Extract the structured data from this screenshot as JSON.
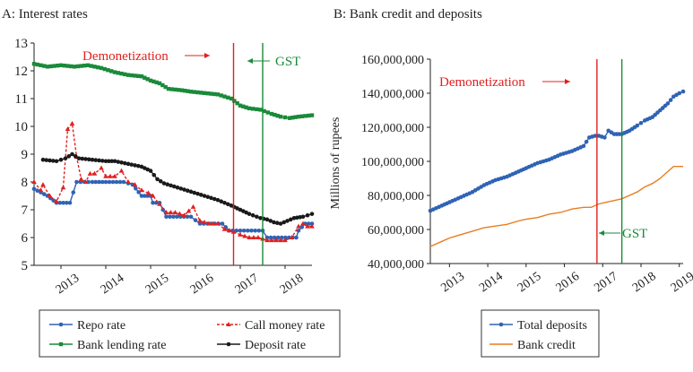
{
  "chart_data": [
    {
      "type": "line",
      "title": "A: Interest rates",
      "xlabel": "",
      "ylabel": "",
      "ylim": [
        5,
        13
      ],
      "yticks": [
        "5",
        "6",
        "7",
        "8",
        "9",
        "10",
        "11",
        "12",
        "13"
      ],
      "xlim": [
        2012.4,
        2018.6
      ],
      "xticks": [
        "2013",
        "2014",
        "2015",
        "2016",
        "2017",
        "2018"
      ],
      "grid": false,
      "legend_position": "bottom",
      "annotations": [
        {
          "text": "Demonetization",
          "x": 2016.85,
          "color": "#e02020",
          "line_color": "#e02020"
        },
        {
          "text": "GST",
          "x": 2017.5,
          "color": "#1a8a3a",
          "line_color": "#1a8a3a"
        }
      ],
      "series": [
        {
          "name": "Repo rate",
          "color": "#2f63b4",
          "marker": "circle",
          "points": [
            [
              2012.4,
              7.75
            ],
            [
              2012.7,
              7.5
            ],
            [
              2012.9,
              7.25
            ],
            [
              2013.2,
              7.25
            ],
            [
              2013.35,
              8.0
            ],
            [
              2013.7,
              8.0
            ],
            [
              2014.0,
              8.0
            ],
            [
              2014.4,
              8.0
            ],
            [
              2014.6,
              7.9
            ],
            [
              2014.8,
              7.5
            ],
            [
              2015.0,
              7.5
            ],
            [
              2015.05,
              7.25
            ],
            [
              2015.2,
              7.25
            ],
            [
              2015.35,
              6.75
            ],
            [
              2015.9,
              6.75
            ],
            [
              2016.1,
              6.5
            ],
            [
              2016.6,
              6.5
            ],
            [
              2016.75,
              6.25
            ],
            [
              2017.5,
              6.25
            ],
            [
              2017.6,
              6.0
            ],
            [
              2018.25,
              6.0
            ],
            [
              2018.3,
              6.25
            ],
            [
              2018.45,
              6.5
            ],
            [
              2018.6,
              6.5
            ]
          ]
        },
        {
          "name": "Call money rate",
          "color": "#e02020",
          "marker": "triangle",
          "points": [
            [
              2012.4,
              8.0
            ],
            [
              2012.55,
              7.7
            ],
            [
              2012.6,
              7.9
            ],
            [
              2012.75,
              7.5
            ],
            [
              2012.9,
              7.3
            ],
            [
              2013.05,
              7.8
            ],
            [
              2013.15,
              9.9
            ],
            [
              2013.25,
              10.1
            ],
            [
              2013.35,
              8.9
            ],
            [
              2013.45,
              8.1
            ],
            [
              2013.55,
              8.0
            ],
            [
              2013.65,
              8.3
            ],
            [
              2013.75,
              8.3
            ],
            [
              2013.9,
              8.5
            ],
            [
              2014.0,
              8.2
            ],
            [
              2014.2,
              8.2
            ],
            [
              2014.35,
              8.4
            ],
            [
              2014.5,
              8.0
            ],
            [
              2014.65,
              7.9
            ],
            [
              2014.8,
              7.7
            ],
            [
              2014.95,
              7.6
            ],
            [
              2015.05,
              7.5
            ],
            [
              2015.2,
              7.2
            ],
            [
              2015.35,
              6.9
            ],
            [
              2015.55,
              6.9
            ],
            [
              2015.75,
              6.8
            ],
            [
              2015.95,
              7.1
            ],
            [
              2016.1,
              6.6
            ],
            [
              2016.3,
              6.5
            ],
            [
              2016.5,
              6.5
            ],
            [
              2016.65,
              6.3
            ],
            [
              2016.85,
              6.2
            ],
            [
              2017.0,
              6.1
            ],
            [
              2017.2,
              6.0
            ],
            [
              2017.4,
              6.0
            ],
            [
              2017.6,
              5.9
            ],
            [
              2017.8,
              5.9
            ],
            [
              2018.0,
              5.9
            ],
            [
              2018.15,
              6.0
            ],
            [
              2018.3,
              6.4
            ],
            [
              2018.4,
              6.5
            ],
            [
              2018.5,
              6.4
            ],
            [
              2018.6,
              6.4
            ]
          ]
        },
        {
          "name": "Bank lending rate",
          "color": "#1a8a3a",
          "marker": "square",
          "points": [
            [
              2012.4,
              12.25
            ],
            [
              2012.7,
              12.15
            ],
            [
              2013.0,
              12.2
            ],
            [
              2013.3,
              12.15
            ],
            [
              2013.6,
              12.2
            ],
            [
              2013.9,
              12.1
            ],
            [
              2014.2,
              11.95
            ],
            [
              2014.5,
              11.85
            ],
            [
              2014.8,
              11.8
            ],
            [
              2015.0,
              11.65
            ],
            [
              2015.2,
              11.55
            ],
            [
              2015.4,
              11.35
            ],
            [
              2015.7,
              11.3
            ],
            [
              2015.9,
              11.25
            ],
            [
              2016.2,
              11.2
            ],
            [
              2016.5,
              11.15
            ],
            [
              2016.8,
              11.0
            ],
            [
              2017.0,
              10.75
            ],
            [
              2017.2,
              10.65
            ],
            [
              2017.45,
              10.6
            ],
            [
              2017.7,
              10.45
            ],
            [
              2017.9,
              10.35
            ],
            [
              2018.1,
              10.3
            ],
            [
              2018.3,
              10.35
            ],
            [
              2018.6,
              10.4
            ]
          ]
        },
        {
          "name": "Deposit rate",
          "color": "#1a1a1a",
          "marker": "circle",
          "points": [
            [
              2012.6,
              8.8
            ],
            [
              2012.9,
              8.75
            ],
            [
              2013.1,
              8.85
            ],
            [
              2013.25,
              9.0
            ],
            [
              2013.4,
              8.85
            ],
            [
              2013.7,
              8.8
            ],
            [
              2014.0,
              8.75
            ],
            [
              2014.2,
              8.75
            ],
            [
              2014.5,
              8.65
            ],
            [
              2014.8,
              8.55
            ],
            [
              2015.0,
              8.4
            ],
            [
              2015.15,
              8.1
            ],
            [
              2015.3,
              7.95
            ],
            [
              2015.6,
              7.8
            ],
            [
              2015.9,
              7.65
            ],
            [
              2016.2,
              7.5
            ],
            [
              2016.5,
              7.35
            ],
            [
              2016.8,
              7.15
            ],
            [
              2017.0,
              7.0
            ],
            [
              2017.2,
              6.85
            ],
            [
              2017.45,
              6.7
            ],
            [
              2017.6,
              6.65
            ],
            [
              2017.75,
              6.55
            ],
            [
              2017.9,
              6.5
            ],
            [
              2018.05,
              6.6
            ],
            [
              2018.2,
              6.7
            ],
            [
              2018.4,
              6.75
            ],
            [
              2018.6,
              6.85
            ]
          ]
        }
      ]
    },
    {
      "type": "line",
      "title": "B: Bank credit and deposits",
      "xlabel": "",
      "ylabel": "Millions of rupees",
      "ylim": [
        40000000,
        160000000
      ],
      "yticks": [
        "40,000,000",
        "60,000,000",
        "80,000,000",
        "100,000,000",
        "120,000,000",
        "140,000,000",
        "160,000,000"
      ],
      "xlim": [
        2012.5,
        2019.1
      ],
      "xticks": [
        "2013",
        "2014",
        "2015",
        "2016",
        "2017",
        "2018",
        "2019"
      ],
      "grid": false,
      "legend_position": "bottom",
      "annotations": [
        {
          "text": "Demonetization",
          "x": 2016.85,
          "color": "#e02020",
          "line_color": "#e02020"
        },
        {
          "text": "GST",
          "x": 2017.5,
          "color": "#1a8a3a",
          "line_color": "#1a8a3a"
        }
      ],
      "series": [
        {
          "name": "Total deposits",
          "color": "#2f63b4",
          "marker": "circle",
          "points": [
            [
              2012.5,
              71000000
            ],
            [
              2012.8,
              74000000
            ],
            [
              2013.0,
              76000000
            ],
            [
              2013.3,
              79000000
            ],
            [
              2013.6,
              82000000
            ],
            [
              2013.9,
              86000000
            ],
            [
              2014.2,
              89000000
            ],
            [
              2014.5,
              91000000
            ],
            [
              2014.8,
              94000000
            ],
            [
              2015.0,
              96000000
            ],
            [
              2015.3,
              99000000
            ],
            [
              2015.6,
              101000000
            ],
            [
              2015.9,
              104000000
            ],
            [
              2016.2,
              106000000
            ],
            [
              2016.5,
              109000000
            ],
            [
              2016.65,
              114000000
            ],
            [
              2016.8,
              115000000
            ],
            [
              2016.9,
              115000000
            ],
            [
              2017.05,
              114000000
            ],
            [
              2017.15,
              118000000
            ],
            [
              2017.3,
              116000000
            ],
            [
              2017.5,
              116000000
            ],
            [
              2017.7,
              118000000
            ],
            [
              2017.9,
              121000000
            ],
            [
              2018.1,
              124000000
            ],
            [
              2018.3,
              126000000
            ],
            [
              2018.5,
              130000000
            ],
            [
              2018.7,
              134000000
            ],
            [
              2018.85,
              138000000
            ],
            [
              2019.0,
              140000000
            ],
            [
              2019.1,
              141000000
            ]
          ]
        },
        {
          "name": "Bank credit",
          "color": "#e67e22",
          "marker": "none",
          "points": [
            [
              2012.5,
              50000000
            ],
            [
              2012.8,
              53000000
            ],
            [
              2013.0,
              55000000
            ],
            [
              2013.3,
              57000000
            ],
            [
              2013.6,
              59000000
            ],
            [
              2013.9,
              61000000
            ],
            [
              2014.2,
              62000000
            ],
            [
              2014.5,
              63000000
            ],
            [
              2014.8,
              65000000
            ],
            [
              2015.0,
              66000000
            ],
            [
              2015.3,
              67000000
            ],
            [
              2015.6,
              69000000
            ],
            [
              2015.9,
              70000000
            ],
            [
              2016.2,
              72000000
            ],
            [
              2016.5,
              73000000
            ],
            [
              2016.7,
              73000000
            ],
            [
              2016.9,
              75000000
            ],
            [
              2017.1,
              76000000
            ],
            [
              2017.3,
              77000000
            ],
            [
              2017.5,
              78000000
            ],
            [
              2017.7,
              80000000
            ],
            [
              2017.9,
              82000000
            ],
            [
              2018.1,
              85000000
            ],
            [
              2018.3,
              87000000
            ],
            [
              2018.5,
              90000000
            ],
            [
              2018.7,
              94000000
            ],
            [
              2018.85,
              97000000
            ],
            [
              2019.0,
              97000000
            ],
            [
              2019.1,
              97000000
            ]
          ]
        }
      ]
    }
  ]
}
